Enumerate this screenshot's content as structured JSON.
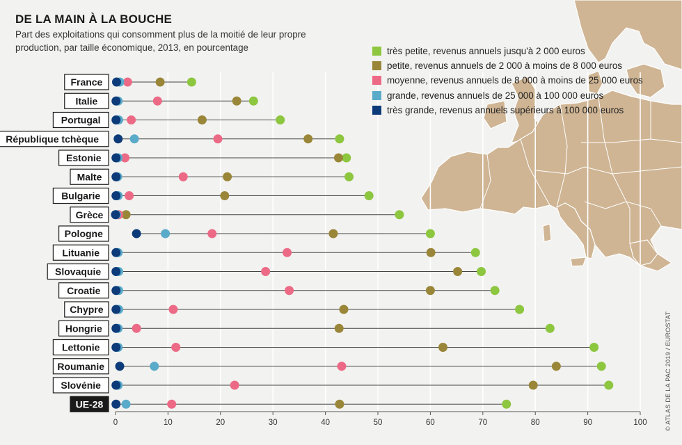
{
  "title": "DE LA MAIN À LA BOUCHE",
  "subtitle": "Part des exploitations qui consomment plus de la moitié de leur propre production, par taille économique, 2013, en pourcentage",
  "source": "© ATLAS DE LA PAC 2019 / EUROSTAT",
  "colors": {
    "tres_petite": "#8dc63f",
    "petite": "#9a8638",
    "moyenne": "#ec6a86",
    "grande": "#5aabca",
    "tres_grande": "#0d3b7a",
    "map_land": "#cfb594",
    "map_border": "#ffffff",
    "grid": "#ffffff"
  },
  "chart_data": {
    "type": "dot-plot",
    "title": "DE LA MAIN À LA BOUCHE",
    "xlabel": "",
    "ylabel": "",
    "xlim": [
      0,
      100
    ],
    "xticks": [
      0,
      10,
      20,
      30,
      40,
      50,
      60,
      70,
      80,
      90,
      100
    ],
    "grid": true,
    "legend_position": "top-right",
    "series": [
      {
        "key": "tres_petite",
        "name": "très petite, revenus annuels jusqu'à 2 000 euros"
      },
      {
        "key": "petite",
        "name": "petite, revenus annuels de 2 000 à moins de 8 000 euros"
      },
      {
        "key": "moyenne",
        "name": "moyenne, revenus annuels de 8 000 à moins de 25 000 euros"
      },
      {
        "key": "grande",
        "name": "grande, revenus annuels de 25 000 à 100 000 euros"
      },
      {
        "key": "tres_grande",
        "name": "très grande, revenus annuels supérieurs à 100 000 euros"
      }
    ],
    "countries": [
      {
        "name": "France",
        "tres_petite": 14.5,
        "petite": 8.5,
        "moyenne": 2.3,
        "grande": 0.8,
        "tres_grande": 0.2
      },
      {
        "name": "Italie",
        "tres_petite": 26.3,
        "petite": 23.1,
        "moyenne": 8.0,
        "grande": 0.5,
        "tres_grande": 0.1
      },
      {
        "name": "Portugal",
        "tres_petite": 31.4,
        "petite": 16.5,
        "moyenne": 3.0,
        "grande": 0.6,
        "tres_grande": 0.1
      },
      {
        "name": "République tchèque",
        "tres_petite": 42.7,
        "petite": 36.7,
        "moyenne": 19.5,
        "grande": 3.6,
        "tres_grande": 0.5
      },
      {
        "name": "Estonie",
        "tres_petite": 44.0,
        "petite": 42.5,
        "moyenne": 1.8,
        "grande": 0.5,
        "tres_grande": 0.1
      },
      {
        "name": "Malte",
        "tres_petite": 44.5,
        "petite": 21.3,
        "moyenne": 12.9,
        "grande": 0.4,
        "tres_grande": 0.1
      },
      {
        "name": "Bulgarie",
        "tres_petite": 48.3,
        "petite": 20.8,
        "moyenne": 2.6,
        "grande": 0.5,
        "tres_grande": 0.1
      },
      {
        "name": "Grèce",
        "tres_petite": 54.1,
        "petite": 2.0,
        "moyenne": 0.6,
        "grande": 0.2,
        "tres_grande": 0.0
      },
      {
        "name": "Pologne",
        "tres_petite": 60.0,
        "petite": 41.5,
        "moyenne": 18.4,
        "grande": 9.5,
        "tres_grande": 4.0
      },
      {
        "name": "Lituanie",
        "tres_petite": 68.6,
        "petite": 60.1,
        "moyenne": 32.7,
        "grande": 0.5,
        "tres_grande": 0.1
      },
      {
        "name": "Slovaquie",
        "tres_petite": 69.7,
        "petite": 65.2,
        "moyenne": 28.6,
        "grande": 0.6,
        "tres_grande": 0.1
      },
      {
        "name": "Croatie",
        "tres_petite": 72.3,
        "petite": 60.0,
        "moyenne": 33.1,
        "grande": 0.6,
        "tres_grande": 0.1
      },
      {
        "name": "Chypre",
        "tres_petite": 77.0,
        "petite": 43.5,
        "moyenne": 11.0,
        "grande": 0.6,
        "tres_grande": 0.1
      },
      {
        "name": "Hongrie",
        "tres_petite": 82.8,
        "petite": 42.6,
        "moyenne": 4.0,
        "grande": 0.5,
        "tres_grande": 0.1
      },
      {
        "name": "Lettonie",
        "tres_petite": 91.2,
        "petite": 62.4,
        "moyenne": 11.5,
        "grande": 0.5,
        "tres_grande": 0.1
      },
      {
        "name": "Roumanie",
        "tres_petite": 92.6,
        "petite": 84.0,
        "moyenne": 43.1,
        "grande": 7.4,
        "tres_grande": 0.8
      },
      {
        "name": "Slovénie",
        "tres_petite": 94.0,
        "petite": 79.6,
        "moyenne": 22.7,
        "grande": 0.5,
        "tres_grande": 0.1
      },
      {
        "name": "UE-28",
        "tres_petite": 74.5,
        "petite": 42.7,
        "moyenne": 10.7,
        "grande": 2.0,
        "tres_grande": 0.1,
        "highlight": true
      }
    ]
  }
}
